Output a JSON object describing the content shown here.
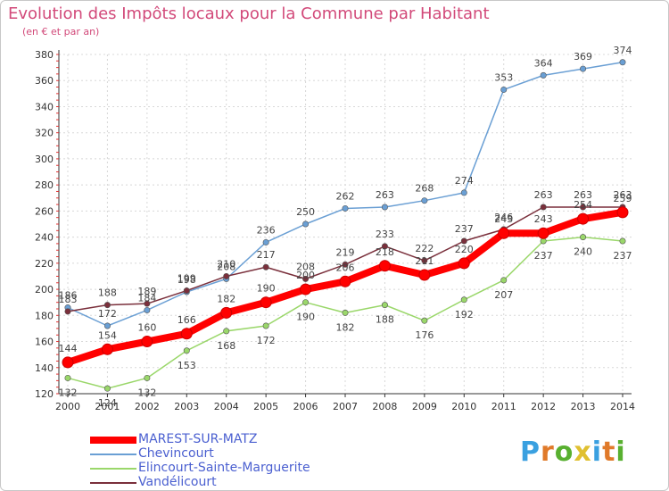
{
  "chart_data": {
    "type": "line",
    "title": "Evolution des Impôts locaux pour la Commune par Habitant",
    "subtitle": "(en € et par an)",
    "xlabel": "",
    "ylabel": "",
    "x": [
      "2000",
      "2001",
      "2002",
      "2003",
      "2004",
      "2005",
      "2006",
      "2007",
      "2008",
      "2009",
      "2010",
      "2011",
      "2012",
      "2013",
      "2014"
    ],
    "yticks": [
      120,
      140,
      160,
      180,
      200,
      220,
      240,
      260,
      280,
      300,
      320,
      340,
      360,
      380
    ],
    "ylim": [
      120,
      380
    ],
    "grid": true,
    "legend_position": "bottom-left",
    "series": [
      {
        "name": "MAREST-SUR-MATZ",
        "color": "#ff0000",
        "values": [
          144,
          154,
          160,
          166,
          182,
          190,
          200,
          206,
          218,
          211,
          220,
          243,
          243,
          254,
          259
        ]
      },
      {
        "name": "Chevincourt",
        "color": "#6a9fd4",
        "values": [
          186,
          172,
          184,
          198,
          208,
          236,
          250,
          262,
          263,
          268,
          274,
          353,
          364,
          369,
          374
        ]
      },
      {
        "name": "Elincourt-Sainte-Marguerite",
        "color": "#9ad76a",
        "values": [
          132,
          124,
          132,
          153,
          168,
          172,
          190,
          182,
          188,
          176,
          192,
          207,
          237,
          240,
          237
        ]
      },
      {
        "name": "Vandélicourt",
        "color": "#7a2f3b",
        "values": [
          183,
          188,
          189,
          199,
          210,
          217,
          208,
          219,
          233,
          222,
          237,
          246,
          263,
          263,
          263
        ]
      }
    ]
  },
  "logo": {
    "letters": [
      "P",
      "r",
      "o",
      "x",
      "i",
      "t",
      "i"
    ],
    "colors": [
      "#3aa0e0",
      "#e07a2a",
      "#58b030",
      "#e0c030",
      "#3aa0e0",
      "#e07a2a",
      "#58b030"
    ]
  }
}
